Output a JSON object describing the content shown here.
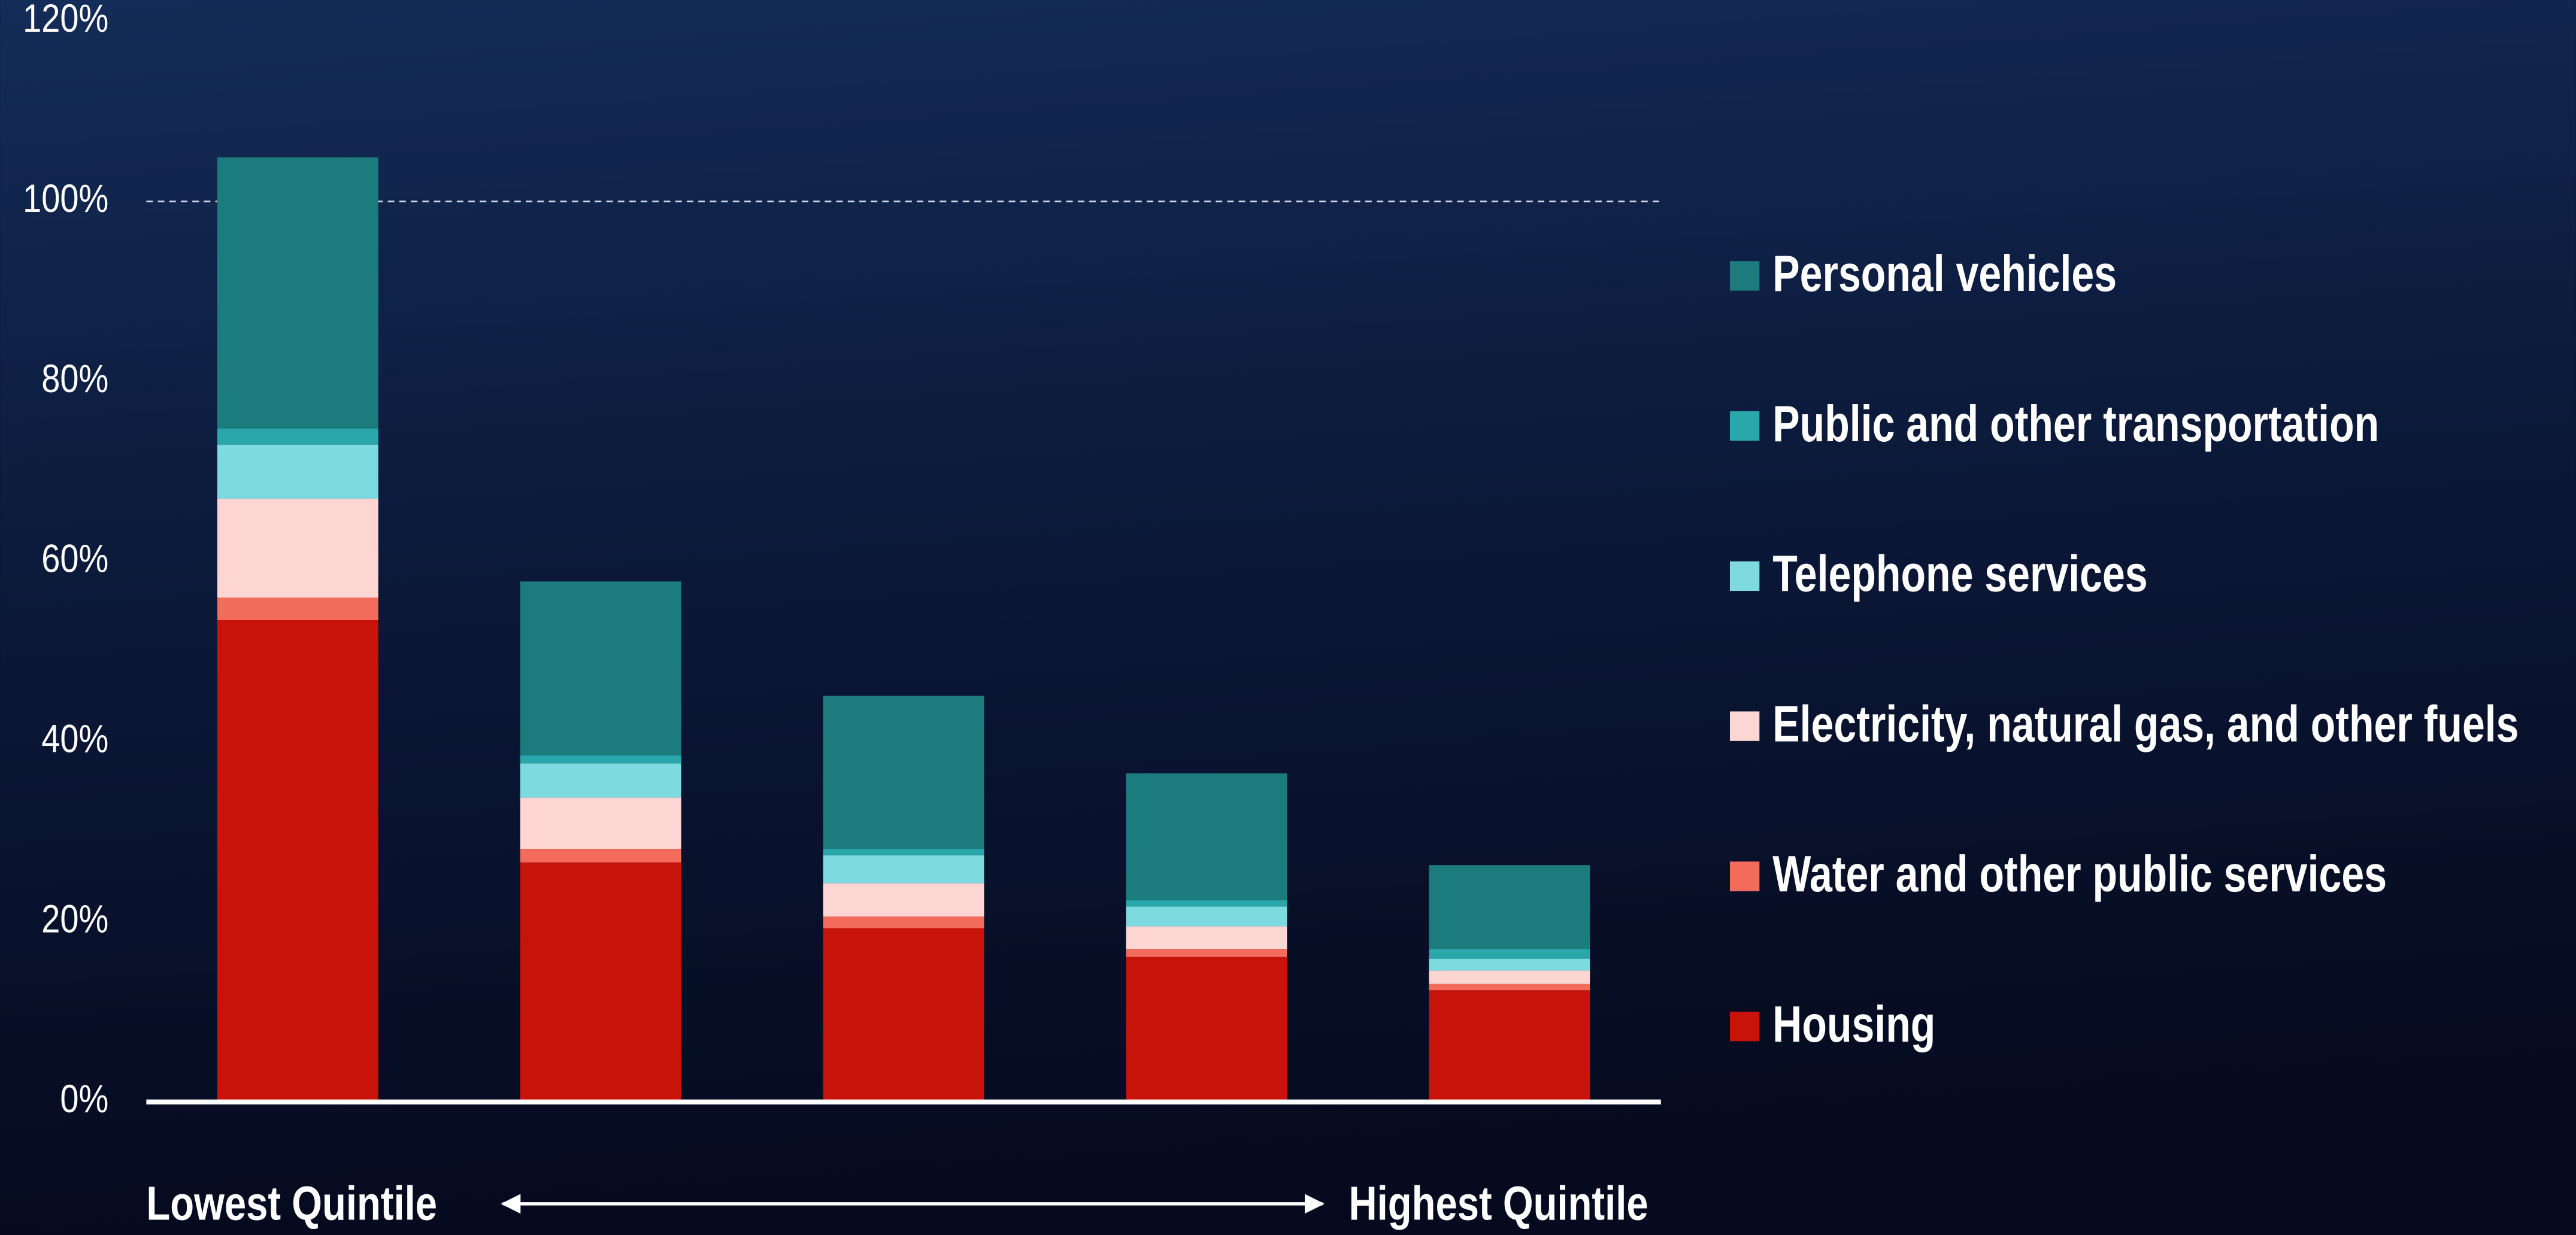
{
  "chart_data": {
    "type": "stacked_bar",
    "categories": [
      null,
      null,
      null,
      null,
      null
    ],
    "series": [
      {
        "name": "Housing",
        "color": "#c8130a",
        "values": [
          53.5,
          26.6,
          19.3,
          16.1,
          12.4
        ]
      },
      {
        "name": "Water and other public services",
        "color": "#f26b5b",
        "values": [
          2.5,
          1.5,
          1.3,
          0.9,
          0.7
        ]
      },
      {
        "name": "Electricity, natural gas, and other fuels",
        "color": "#fdd5d3",
        "values": [
          11,
          5.7,
          3.7,
          2.5,
          1.5
        ]
      },
      {
        "name": "Telephone services",
        "color": "#7ddbe0",
        "values": [
          6,
          3.8,
          3.1,
          2.2,
          1.3
        ]
      },
      {
        "name": "Public and other transportation",
        "color": "#2aa7ab",
        "values": [
          1.8,
          0.9,
          0.7,
          0.7,
          1.1
        ]
      },
      {
        "name": "Personal vehicles",
        "color": "#1b7b7d",
        "values": [
          30.1,
          19.3,
          17,
          14.1,
          9.3
        ]
      }
    ],
    "ylim": [
      0,
      120
    ],
    "yticks": [
      {
        "value": 0,
        "label": "0%"
      },
      {
        "value": 20,
        "label": "20%"
      },
      {
        "value": 40,
        "label": "40%"
      },
      {
        "value": 60,
        "label": "60%"
      },
      {
        "value": 80,
        "label": "80%"
      },
      {
        "value": 100,
        "label": "100%"
      },
      {
        "value": 120,
        "label": "120%"
      }
    ],
    "reference_line": 100,
    "grid": false,
    "legend": "right",
    "annotations": [
      "Lowest Quintile",
      "Highest Quintile"
    ]
  }
}
